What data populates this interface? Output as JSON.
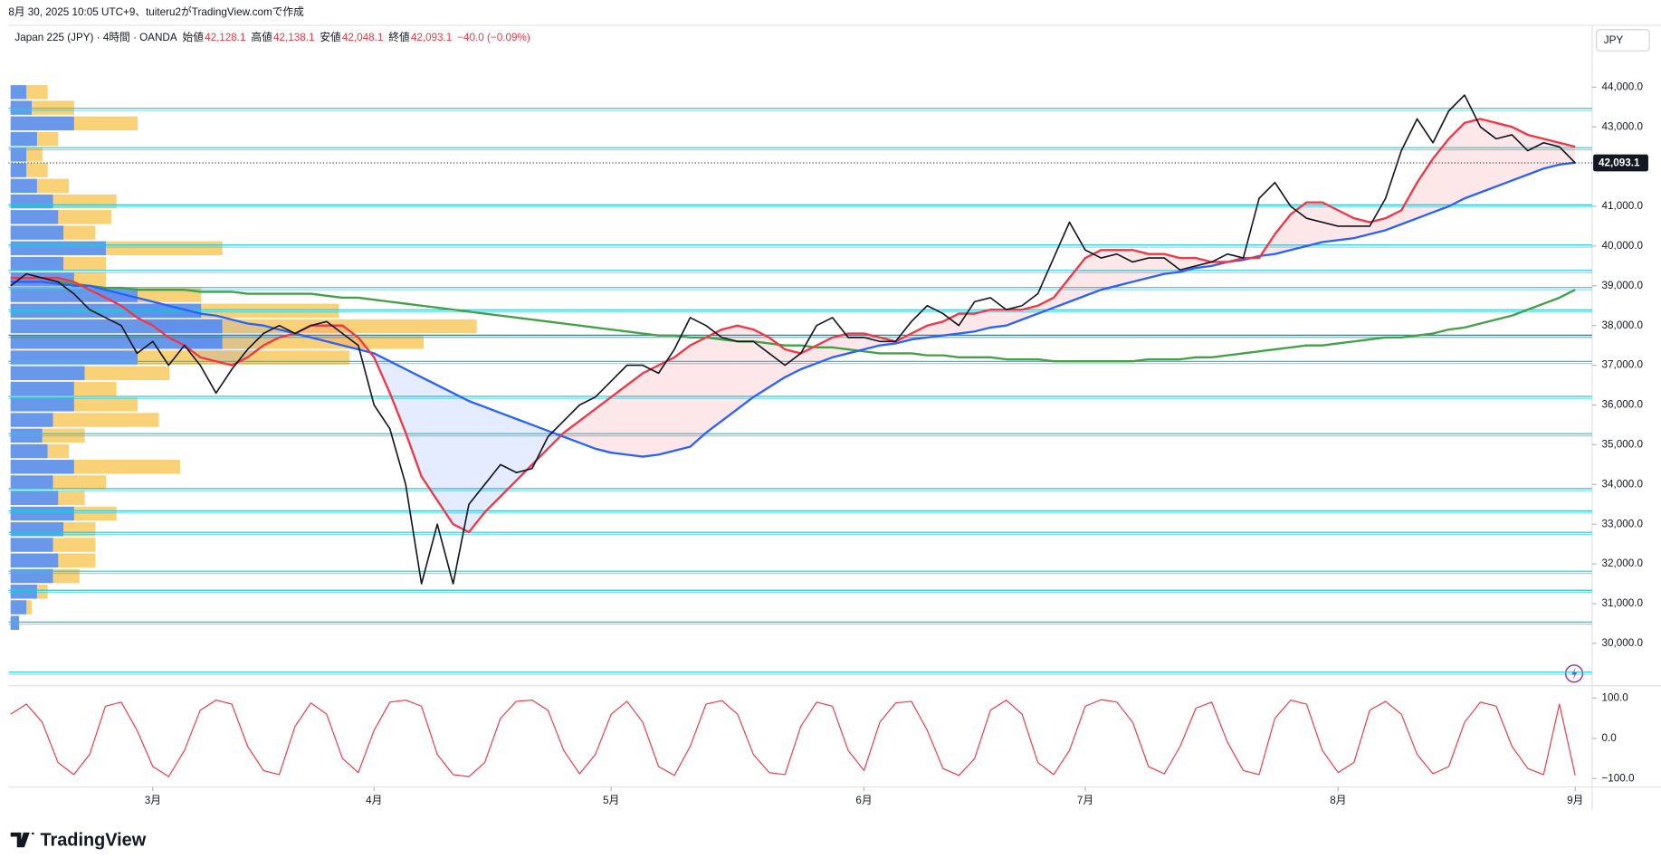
{
  "header": "8月 30, 2025 10:05 UTC+9、tuiteru2がTradingView.comで作成",
  "logo": "TradingView",
  "chart_data": [
    {
      "type": "line",
      "legend": [
        "Japan 225 (JPY) · 4時間 · OANDA",
        "始値",
        "42,128.1",
        "高値",
        "42,138.1",
        "安値",
        "42,048.1",
        "終値",
        "42,093.1",
        "−40.0 (−0.09%)"
      ],
      "currency": "JPY",
      "categories": [
        null,
        null,
        null,
        null,
        null,
        null,
        null,
        null,
        null,
        "3月",
        null,
        null,
        null,
        null,
        null,
        null,
        null,
        null,
        null,
        null,
        null,
        null,
        null,
        "4月",
        null,
        null,
        null,
        null,
        null,
        null,
        null,
        null,
        null,
        null,
        null,
        null,
        null,
        null,
        "5月",
        null,
        null,
        null,
        null,
        null,
        null,
        null,
        null,
        null,
        null,
        null,
        null,
        null,
        null,
        null,
        "6月",
        null,
        null,
        null,
        null,
        null,
        null,
        null,
        null,
        null,
        null,
        null,
        null,
        null,
        "7月",
        null,
        null,
        null,
        null,
        null,
        null,
        null,
        null,
        null,
        null,
        null,
        null,
        null,
        null,
        null,
        "8月",
        null,
        null,
        null,
        null,
        null,
        null,
        null,
        null,
        null,
        null,
        null,
        null,
        null,
        null,
        "9月"
      ],
      "ylim": [
        29000,
        45500
      ],
      "yticks": [
        {
          "value": 44000,
          "label": "44,000.0"
        },
        {
          "value": 43000,
          "label": "43,000.0"
        },
        {
          "value": 42000,
          "label": "42,000.0"
        },
        {
          "value": 41000,
          "label": "41,000.0"
        },
        {
          "value": 40000,
          "label": "40,000.0"
        },
        {
          "value": 39000,
          "label": "39,000.0"
        },
        {
          "value": 38000,
          "label": "38,000.0"
        },
        {
          "value": 37000,
          "label": "37,000.0"
        },
        {
          "value": 36000,
          "label": "36,000.0"
        },
        {
          "value": 35000,
          "label": "35,000.0"
        },
        {
          "value": 34000,
          "label": "34,000.0"
        },
        {
          "value": 33000,
          "label": "33,000.0"
        },
        {
          "value": 32000,
          "label": "32,000.0"
        },
        {
          "value": 31000,
          "label": "31,000.0"
        },
        {
          "value": 30000,
          "label": "30,000.0"
        }
      ],
      "series": [
        {
          "color": "#131722",
          "last_label": "42,093.1",
          "values": [
            39000,
            39300,
            39200,
            39100,
            38800,
            38400,
            38200,
            38000,
            37300,
            37600,
            37000,
            37500,
            37000,
            36300,
            36900,
            37400,
            37800,
            38000,
            37800,
            38000,
            38100,
            37800,
            37500,
            36000,
            35400,
            34000,
            31500,
            33000,
            31500,
            33500,
            34000,
            34500,
            34300,
            34400,
            35200,
            35600,
            36000,
            36200,
            36600,
            37000,
            37000,
            36800,
            37400,
            38200,
            38000,
            37700,
            37600,
            37600,
            37300,
            37000,
            37300,
            38000,
            38200,
            37700,
            37700,
            37600,
            37600,
            38100,
            38500,
            38300,
            38000,
            38600,
            38700,
            38400,
            38500,
            38800,
            39700,
            40600,
            39900,
            39700,
            39800,
            39600,
            39700,
            39700,
            39400,
            39500,
            39600,
            39800,
            39700,
            41200,
            41600,
            41000,
            40700,
            40600,
            40500,
            40500,
            40500,
            41200,
            42400,
            43200,
            42600,
            43400,
            43800,
            43000,
            42700,
            42800,
            42400,
            42600,
            42500,
            42093.1
          ]
        },
        {
          "color": "#f23645",
          "values": [
            39200,
            39200,
            39200,
            39200,
            39100,
            38900,
            38700,
            38500,
            38200,
            38000,
            37700,
            37500,
            37200,
            37100,
            37000,
            37200,
            37500,
            37700,
            37800,
            38000,
            38000,
            38000,
            37700,
            37200,
            36300,
            35300,
            34200,
            33600,
            33000,
            32800,
            33300,
            33700,
            34100,
            34500,
            34900,
            35300,
            35600,
            35900,
            36200,
            36500,
            36800,
            37000,
            37200,
            37500,
            37700,
            37900,
            38000,
            37900,
            37700,
            37400,
            37300,
            37500,
            37700,
            37800,
            37800,
            37700,
            37600,
            37800,
            38000,
            38100,
            38300,
            38300,
            38400,
            38400,
            38400,
            38500,
            38700,
            39200,
            39700,
            39900,
            39900,
            39900,
            39800,
            39800,
            39700,
            39700,
            39600,
            39600,
            39700,
            39700,
            40300,
            40800,
            41100,
            41100,
            40900,
            40700,
            40600,
            40700,
            40900,
            41600,
            42200,
            42700,
            43100,
            43200,
            43100,
            43000,
            42800,
            42700,
            42600,
            42500
          ]
        },
        {
          "color": "#2962ff",
          "values": [
            39100,
            39100,
            39100,
            39050,
            39000,
            39000,
            38900,
            38800,
            38700,
            38600,
            38500,
            38400,
            38300,
            38250,
            38150,
            38050,
            38000,
            37900,
            37800,
            37700,
            37600,
            37500,
            37400,
            37300,
            37100,
            36900,
            36700,
            36500,
            36300,
            36100,
            35950,
            35800,
            35650,
            35500,
            35350,
            35200,
            35050,
            34900,
            34800,
            34750,
            34700,
            34750,
            34850,
            34950,
            35300,
            35600,
            35900,
            36200,
            36450,
            36700,
            36900,
            37050,
            37200,
            37300,
            37400,
            37500,
            37550,
            37650,
            37700,
            37750,
            37800,
            37850,
            37950,
            38000,
            38150,
            38300,
            38450,
            38600,
            38750,
            38900,
            39000,
            39100,
            39200,
            39300,
            39350,
            39450,
            39500,
            39600,
            39650,
            39750,
            39800,
            39900,
            40000,
            40100,
            40150,
            40200,
            40300,
            40400,
            40550,
            40700,
            40850,
            41000,
            41200,
            41350,
            41500,
            41650,
            41800,
            41950,
            42050,
            42100
          ]
        },
        {
          "color": "#43a047",
          "values": [
            null,
            null,
            null,
            39100,
            39050,
            39000,
            38950,
            38950,
            38900,
            38900,
            38900,
            38900,
            38850,
            38850,
            38850,
            38800,
            38800,
            38800,
            38800,
            38800,
            38750,
            38700,
            38700,
            38650,
            38600,
            38550,
            38500,
            38450,
            38400,
            38350,
            38300,
            38250,
            38200,
            38150,
            38100,
            38050,
            38000,
            37950,
            37900,
            37850,
            37800,
            37750,
            37750,
            37700,
            37700,
            37650,
            37600,
            37600,
            37550,
            37500,
            37500,
            37450,
            37450,
            37400,
            37350,
            37300,
            37300,
            37300,
            37250,
            37250,
            37200,
            37200,
            37200,
            37150,
            37150,
            37150,
            37100,
            37100,
            37100,
            37100,
            37100,
            37100,
            37150,
            37150,
            37150,
            37200,
            37200,
            37250,
            37300,
            37350,
            37400,
            37450,
            37500,
            37500,
            37550,
            37600,
            37650,
            37700,
            37700,
            37750,
            37800,
            37900,
            37950,
            38050,
            38150,
            38250,
            38400,
            38550,
            38700,
            38900
          ]
        }
      ],
      "levels": [
        {
          "value": 43440,
          "color": "#26c6da"
        },
        {
          "value": 42450,
          "color": "#26c6da"
        },
        {
          "value": 41010,
          "color": "#26c6da"
        },
        {
          "value": 40000,
          "color": "#26c6da"
        },
        {
          "value": 39360,
          "color": "#26c6da"
        },
        {
          "value": 38930,
          "color": "#26c6da"
        },
        {
          "value": 38370,
          "color": "#26c6da"
        },
        {
          "value": 37730,
          "color": "#3f7f8c"
        },
        {
          "value": 37070,
          "color": "#26c6da"
        },
        {
          "value": 36190,
          "color": "#26c6da"
        },
        {
          "value": 35250,
          "color": "#26c6da"
        },
        {
          "value": 33870,
          "color": "#26c6da"
        },
        {
          "value": 33310,
          "color": "#26c6da"
        },
        {
          "value": 32770,
          "color": "#26c6da"
        },
        {
          "value": 31790,
          "color": "#26c6da"
        },
        {
          "value": 31310,
          "color": "#26c6da"
        },
        {
          "value": 30510,
          "color": "#26c6da"
        },
        {
          "value": 29250,
          "color": "#26c6da"
        }
      ],
      "volume_profile": {
        "range": [
          30300,
          44050
        ],
        "colors": [
          "#4f86e6",
          "#f8c555"
        ],
        "up": [
          15,
          20,
          60,
          25,
          15,
          15,
          25,
          40,
          45,
          50,
          90,
          50,
          60,
          120,
          180,
          200,
          200,
          120,
          70,
          60,
          60,
          40,
          30,
          35,
          60,
          40,
          45,
          60,
          50,
          40,
          45,
          40,
          25,
          15,
          8
        ],
        "down": [
          20,
          40,
          60,
          20,
          15,
          20,
          30,
          60,
          50,
          30,
          110,
          40,
          30,
          60,
          130,
          240,
          190,
          200,
          80,
          40,
          60,
          100,
          40,
          20,
          100,
          50,
          25,
          40,
          30,
          40,
          35,
          25,
          10,
          5,
          0
        ]
      }
    },
    {
      "type": "line",
      "ylim": [
        -118,
        124
      ],
      "yticks": [
        {
          "value": 100,
          "label": "100.0"
        },
        {
          "value": 0,
          "label": "0.0"
        },
        {
          "value": -100,
          "label": "−100.0"
        }
      ],
      "series": [
        {
          "color": "#f23645",
          "values": [
            60,
            85,
            40,
            -60,
            -90,
            -40,
            80,
            90,
            20,
            -70,
            -95,
            -30,
            70,
            95,
            85,
            -20,
            -80,
            -90,
            30,
            88,
            60,
            -50,
            -85,
            20,
            90,
            95,
            80,
            -40,
            -90,
            -95,
            -60,
            50,
            92,
            95,
            70,
            -30,
            -88,
            -40,
            60,
            92,
            40,
            -70,
            -92,
            -20,
            85,
            94,
            60,
            -40,
            -85,
            -90,
            30,
            90,
            80,
            -30,
            -80,
            40,
            88,
            92,
            20,
            -75,
            -92,
            -50,
            70,
            95,
            60,
            -60,
            -90,
            -30,
            80,
            96,
            90,
            40,
            -70,
            -88,
            -20,
            75,
            90,
            -10,
            -80,
            -90,
            50,
            95,
            85,
            -30,
            -85,
            -60,
            70,
            92,
            60,
            -40,
            -88,
            -70,
            40,
            90,
            80,
            -20,
            -75,
            -90,
            85,
            -92
          ]
        }
      ]
    }
  ]
}
